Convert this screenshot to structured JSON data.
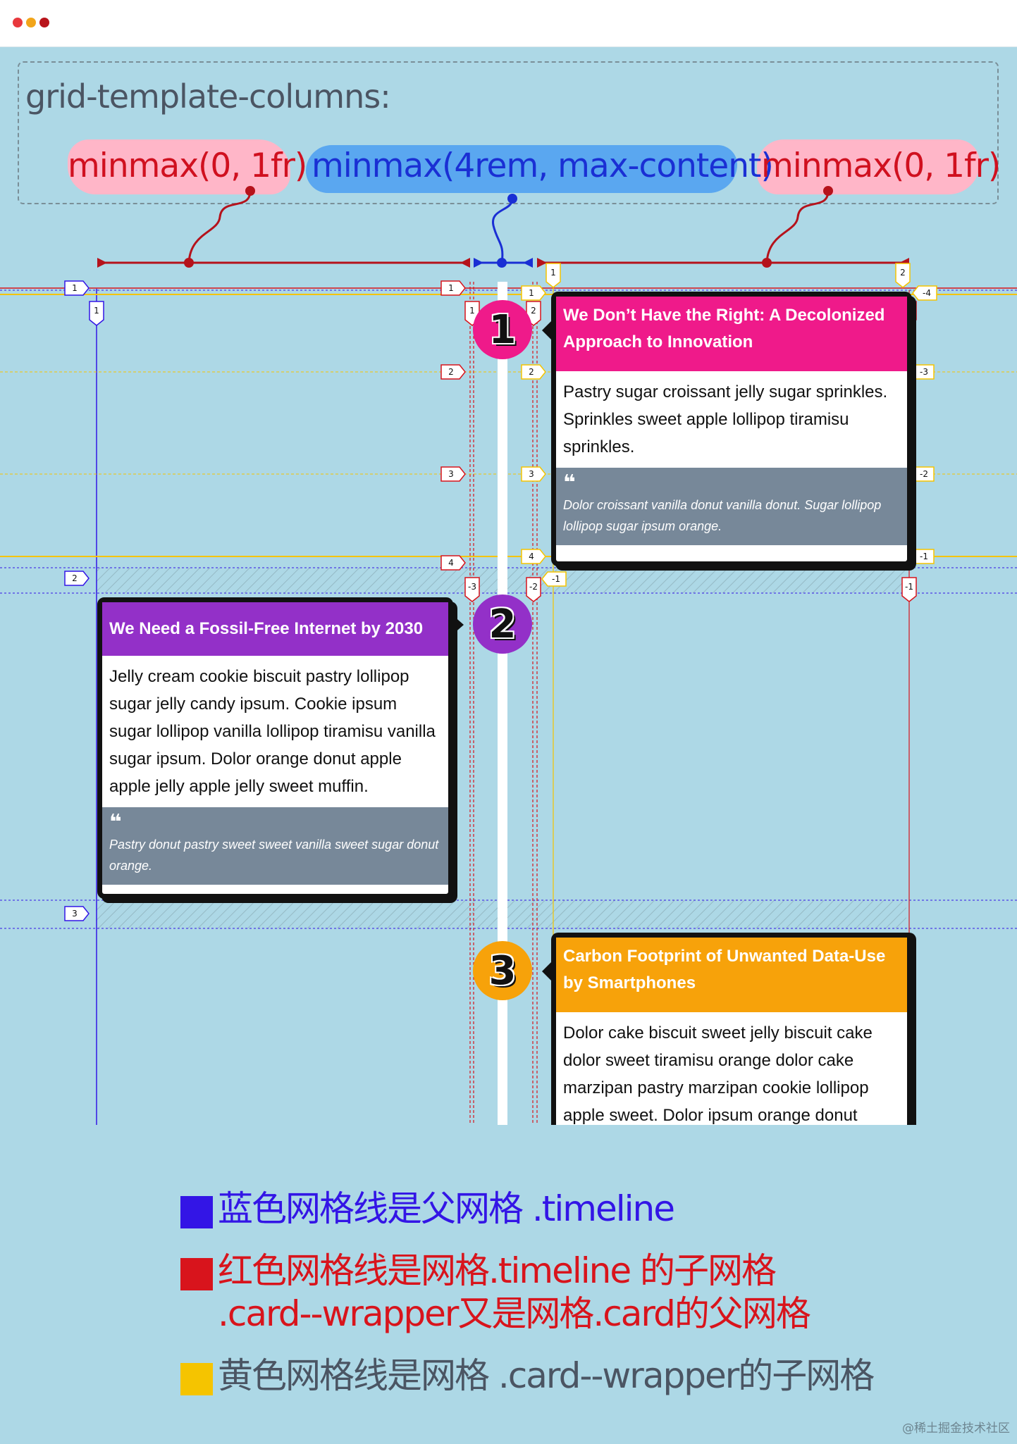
{
  "code": {
    "heading": "grid-template-columns:",
    "tokens": [
      "minmax(0, 1fr)",
      "minmax(4rem, max-content)",
      "minmax(0, 1fr)"
    ]
  },
  "colors": {
    "parent_grid": "#3315e6",
    "subgrid": "#d8141c",
    "nested_subgrid": "#f5c400",
    "card_1": "#ef1a8a",
    "card_2": "#9330c8",
    "card_3": "#f7a20a"
  },
  "line_labels": {
    "parent_columns": [
      "1"
    ],
    "parent_rows": [
      "1",
      "2",
      "3"
    ],
    "subgrid_rows": [
      "1",
      "2",
      "3",
      "4",
      "-3"
    ],
    "card_columns": [
      "1",
      "2",
      "-2",
      "-1"
    ],
    "card_rows_right": [
      "-4",
      "-3",
      "-2",
      "-1"
    ],
    "card_rows_mid": [
      "1",
      "2",
      "3",
      "4"
    ],
    "top_markers": [
      "1",
      "2",
      "3"
    ]
  },
  "timeline": {
    "badges": [
      "1",
      "2",
      "3"
    ]
  },
  "cards": [
    {
      "title": "We Don’t Have the Right: A Decolonized Approach to Innovation",
      "body": "Pastry sugar croissant jelly sugar sprinkles. Sprinkles sweet apple lollipop tiramisu sprinkles.",
      "quote_icon": "quote-icon",
      "quote": "Dolor croissant vanilla donut vanilla donut. Sugar lollipop lollipop sugar ipsum orange."
    },
    {
      "title": "We Need a Fossil-Free Internet by 2030",
      "body": "Jelly cream cookie biscuit pastry lollipop sugar jelly candy ipsum. Cookie ipsum sugar lollipop vanilla lollipop tiramisu vanilla sugar ipsum. Dolor orange donut apple apple jelly apple jelly sweet muffin.",
      "quote_icon": "quote-icon",
      "quote": "Pastry donut pastry sweet sweet vanilla sweet sugar donut orange."
    },
    {
      "title": "Carbon Footprint of Unwanted Data-Use by Smartphones",
      "body": "Dolor cake biscuit sweet jelly biscuit cake dolor sweet tiramisu orange dolor cake marzipan pastry marzipan cookie lollipop apple sweet. Dolor ipsum orange donut"
    }
  ],
  "legend": [
    {
      "color": "#3315e6",
      "text_color": "#3315e6",
      "lines": [
        "蓝色网格线是父网格 .timeline"
      ]
    },
    {
      "color": "#d8141c",
      "text_color": "#d8141c",
      "lines": [
        "红色网格线是网格.timeline 的子网格",
        ".card--wrapper又是网格.card的父网格"
      ]
    },
    {
      "color": "#f5c400",
      "text_color": "#4b5563",
      "lines": [
        "黄色网格线是网格 .card--wrapper的子网格"
      ]
    }
  ],
  "watermark": "@稀土掘金技术社区"
}
